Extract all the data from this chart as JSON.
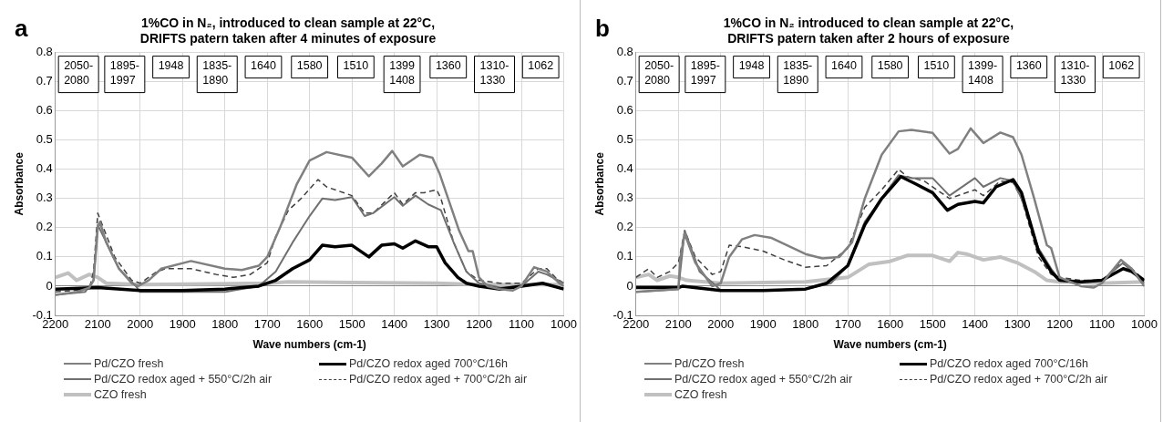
{
  "chart_data": [
    {
      "type": "line",
      "title": "1%CO in N₂, introduced to clean sample at 22°C,\nDRIFTS patern taken after 4 minutes of exposure",
      "xlabel": "Wave numbers (cm-1)",
      "ylabel": "Absorbance",
      "xlim": [
        2200,
        1000
      ],
      "xticks": [
        2200,
        2100,
        2000,
        1900,
        1800,
        1700,
        1600,
        1500,
        1400,
        1300,
        1200,
        1100,
        1000
      ],
      "ylim": [
        -0.1,
        0.8
      ],
      "yticks": [
        -0.1,
        0,
        0.1,
        0.2,
        0.3,
        0.4,
        0.5,
        0.6,
        0.7,
        0.8
      ],
      "grid": true,
      "legend": "bottom",
      "marker": "none",
      "annotations": [
        "a",
        "2050-\n2080",
        "1895-\n1997",
        "1948",
        "1835-\n1890",
        "1640",
        "1580",
        "1510",
        "1399\n1408",
        "1360",
        "1310-\n1330",
        "1062"
      ],
      "series": [
        {
          "name": "Pd/CZO fresh",
          "color": "#808080",
          "x": [
            2200,
            2150,
            2120,
            2110,
            2100,
            2095,
            2080,
            2050,
            2020,
            2005,
            1980,
            1950,
            1880,
            1800,
            1760,
            1720,
            1700,
            1670,
            1630,
            1600,
            1560,
            1500,
            1460,
            1430,
            1405,
            1380,
            1340,
            1310,
            1293,
            1247,
            1225,
            1215,
            1200,
            1180,
            1150,
            1120,
            1100,
            1070,
            1040,
            1010,
            1000
          ],
          "values": [
            -0.03,
            -0.02,
            -0.005,
            0.02,
            0.2,
            0.22,
            0.15,
            0.06,
            0.01,
            0,
            0.02,
            0.06,
            0.086,
            0.06,
            0.055,
            0.07,
            0.1,
            0.2,
            0.35,
            0.43,
            0.459,
            0.44,
            0.376,
            0.42,
            0.463,
            0.41,
            0.45,
            0.44,
            0.385,
            0.19,
            0.12,
            0.12,
            0.03,
            0,
            -0.01,
            -0.015,
            0,
            0.065,
            0.05,
            0.01,
            0
          ]
        },
        {
          "name": "Pd/CZO redox aged 700°C/16h",
          "color": "#000000",
          "x": [
            2200,
            2100,
            2000,
            1900,
            1800,
            1720,
            1680,
            1640,
            1600,
            1570,
            1540,
            1500,
            1460,
            1430,
            1400,
            1380,
            1350,
            1320,
            1300,
            1280,
            1250,
            1230,
            1200,
            1150,
            1100,
            1050,
            1000
          ],
          "values": [
            -0.01,
            -0.005,
            -0.015,
            -0.015,
            -0.01,
            0,
            0.02,
            0.06,
            0.09,
            0.14,
            0.135,
            0.14,
            0.1,
            0.14,
            0.145,
            0.13,
            0.155,
            0.135,
            0.135,
            0.08,
            0.03,
            0.01,
            0,
            -0.01,
            0,
            0.01,
            -0.01
          ]
        },
        {
          "name": "Pd/CZO redox aged + 550°C/2h air",
          "color": "#707070",
          "x": [
            2200,
            2130,
            2110,
            2100,
            2050,
            2010,
            2000,
            1900,
            1800,
            1720,
            1680,
            1640,
            1600,
            1570,
            1540,
            1500,
            1470,
            1450,
            1400,
            1380,
            1350,
            1320,
            1290,
            1260,
            1230,
            1200,
            1150,
            1100,
            1060,
            1040,
            1000
          ],
          "values": [
            -0.03,
            -0.02,
            0.02,
            0.21,
            0.06,
            0,
            -0.02,
            -0.02,
            -0.02,
            0,
            0.05,
            0.15,
            0.24,
            0.3,
            0.295,
            0.305,
            0.24,
            0.25,
            0.305,
            0.275,
            0.31,
            0.28,
            0.26,
            0.15,
            0.05,
            0.01,
            -0.005,
            0,
            0.05,
            0.04,
            0.01
          ]
        },
        {
          "name": "Pd/CZO redox aged + 700°C/2h air",
          "color": "#404040",
          "line_style": "dashed",
          "x": [
            2200,
            2120,
            2110,
            2100,
            2060,
            2020,
            2000,
            1960,
            1940,
            1880,
            1820,
            1780,
            1740,
            1700,
            1680,
            1650,
            1620,
            1580,
            1560,
            1500,
            1470,
            1450,
            1400,
            1380,
            1350,
            1330,
            1300,
            1290,
            1260,
            1230,
            1200,
            1150,
            1100,
            1060,
            1040,
            1020,
            1000
          ],
          "values": [
            -0.02,
            -0.01,
            0.05,
            0.25,
            0.1,
            0.02,
            0.01,
            0.05,
            0.06,
            0.06,
            0.04,
            0.03,
            0.04,
            0.08,
            0.17,
            0.26,
            0.3,
            0.365,
            0.34,
            0.31,
            0.25,
            0.25,
            0.32,
            0.28,
            0.32,
            0.32,
            0.33,
            0.3,
            0.15,
            0.05,
            0.02,
            0.01,
            0.01,
            0.06,
            0.06,
            0.03,
            0.01
          ]
        },
        {
          "name": "CZO fresh",
          "color": "#c0c0c0",
          "x": [
            2200,
            2170,
            2150,
            2120,
            2100,
            2080,
            2000,
            1700,
            1650,
            1500,
            1300,
            1200,
            1000
          ],
          "values": [
            0.03,
            0.045,
            0.02,
            0.04,
            0.03,
            0.01,
            0.005,
            0.01,
            0.015,
            0.012,
            0.01,
            0.005,
            0.005
          ]
        }
      ]
    },
    {
      "type": "line",
      "title": "1%CO in N₂ introduced to clean sample at 22°C,\nDRIFTS patern taken after 2 hours of exposure",
      "xlabel": "Wave numbers (cm-1)",
      "ylabel": "Absorbance",
      "xlim": [
        2200,
        1000
      ],
      "xticks": [
        2200,
        2100,
        2000,
        1900,
        1800,
        1700,
        1600,
        1500,
        1400,
        1300,
        1200,
        1100,
        1000
      ],
      "ylim": [
        -0.1,
        0.8
      ],
      "yticks": [
        -0.1,
        0,
        0.1,
        0.2,
        0.3,
        0.4,
        0.5,
        0.6,
        0.7,
        0.8
      ],
      "grid": true,
      "legend": "bottom",
      "marker": "none",
      "annotations": [
        "b",
        "2050-\n2080",
        "1895-\n1997",
        "1948",
        "1835-\n1890",
        "1640",
        "1580",
        "1510",
        "1399-\n1408",
        "1360",
        "1310-\n1330",
        "1062"
      ],
      "series": [
        {
          "name": "Pd/CZO fresh",
          "color": "#808080",
          "x": [
            2200,
            2100,
            2095,
            2085,
            2060,
            2020,
            2000,
            1980,
            1950,
            1920,
            1880,
            1800,
            1760,
            1720,
            1690,
            1660,
            1620,
            1580,
            1550,
            1500,
            1460,
            1440,
            1410,
            1380,
            1340,
            1310,
            1290,
            1260,
            1230,
            1220,
            1200,
            1150,
            1120,
            1100,
            1055,
            1030,
            1000
          ],
          "values": [
            -0.02,
            -0.01,
            0.1,
            0.18,
            0.08,
            0,
            0.01,
            0.1,
            0.16,
            0.175,
            0.165,
            0.11,
            0.095,
            0.1,
            0.15,
            0.3,
            0.45,
            0.53,
            0.535,
            0.525,
            0.454,
            0.47,
            0.54,
            0.49,
            0.526,
            0.51,
            0.45,
            0.3,
            0.14,
            0.13,
            0.03,
            0,
            -0.005,
            0.01,
            0.09,
            0.06,
            0
          ]
        },
        {
          "name": "Pd/CZO redox aged 700°C/16h",
          "color": "#000000",
          "x": [
            2200,
            2100,
            2090,
            2000,
            1900,
            1800,
            1750,
            1700,
            1660,
            1620,
            1575,
            1540,
            1500,
            1465,
            1440,
            1400,
            1380,
            1350,
            1310,
            1290,
            1250,
            1220,
            1200,
            1150,
            1100,
            1050,
            1030,
            1000
          ],
          "values": [
            -0.005,
            -0.005,
            0,
            -0.015,
            -0.015,
            -0.01,
            0.01,
            0.07,
            0.21,
            0.3,
            0.375,
            0.35,
            0.32,
            0.26,
            0.28,
            0.29,
            0.285,
            0.34,
            0.365,
            0.32,
            0.12,
            0.05,
            0.02,
            0.015,
            0.02,
            0.06,
            0.05,
            0.02
          ]
        },
        {
          "name": "Pd/CZO redox aged + 550°C/2h air",
          "color": "#707070",
          "x": [
            2200,
            2100,
            2085,
            2050,
            2010,
            2000,
            1900,
            1800,
            1740,
            1700,
            1660,
            1620,
            1580,
            1550,
            1500,
            1460,
            1400,
            1380,
            1340,
            1310,
            1290,
            1250,
            1220,
            1200,
            1150,
            1100,
            1050,
            1030,
            1000
          ],
          "values": [
            -0.02,
            -0.01,
            0.19,
            0.05,
            0,
            -0.015,
            -0.015,
            -0.01,
            0.01,
            0.07,
            0.22,
            0.3,
            0.38,
            0.37,
            0.37,
            0.31,
            0.37,
            0.34,
            0.37,
            0.36,
            0.3,
            0.13,
            0.06,
            0.02,
            0.015,
            0.02,
            0.08,
            0.05,
            0.01
          ]
        },
        {
          "name": "Pd/CZO redox aged + 700°C/2h air",
          "color": "#404040",
          "line_style": "dashed",
          "x": [
            2200,
            2170,
            2150,
            2120,
            2100,
            2085,
            2060,
            2020,
            2000,
            1980,
            1950,
            1900,
            1850,
            1800,
            1750,
            1700,
            1660,
            1620,
            1580,
            1560,
            1520,
            1460,
            1400,
            1380,
            1340,
            1310,
            1290,
            1250,
            1220,
            1200,
            1150,
            1100,
            1055,
            1030,
            1000
          ],
          "values": [
            0.03,
            0.06,
            0.03,
            0.05,
            0.08,
            0.19,
            0.1,
            0.04,
            0.05,
            0.14,
            0.135,
            0.12,
            0.09,
            0.065,
            0.07,
            0.13,
            0.27,
            0.33,
            0.4,
            0.375,
            0.36,
            0.3,
            0.33,
            0.31,
            0.36,
            0.355,
            0.3,
            0.1,
            0.04,
            0.03,
            0.02,
            0.02,
            0.08,
            0.06,
            0.02
          ]
        },
        {
          "name": "CZO fresh",
          "color": "#c0c0c0",
          "x": [
            2200,
            2170,
            2150,
            2120,
            2100,
            2080,
            2000,
            1800,
            1700,
            1650,
            1600,
            1560,
            1500,
            1460,
            1440,
            1420,
            1380,
            1340,
            1300,
            1260,
            1230,
            1200,
            1100,
            1000
          ],
          "values": [
            0.03,
            0.04,
            0.02,
            0.035,
            0.03,
            0.02,
            0.01,
            0.015,
            0.03,
            0.075,
            0.085,
            0.105,
            0.105,
            0.085,
            0.115,
            0.11,
            0.09,
            0.1,
            0.08,
            0.05,
            0.02,
            0.015,
            0.01,
            0.015
          ]
        }
      ]
    }
  ]
}
